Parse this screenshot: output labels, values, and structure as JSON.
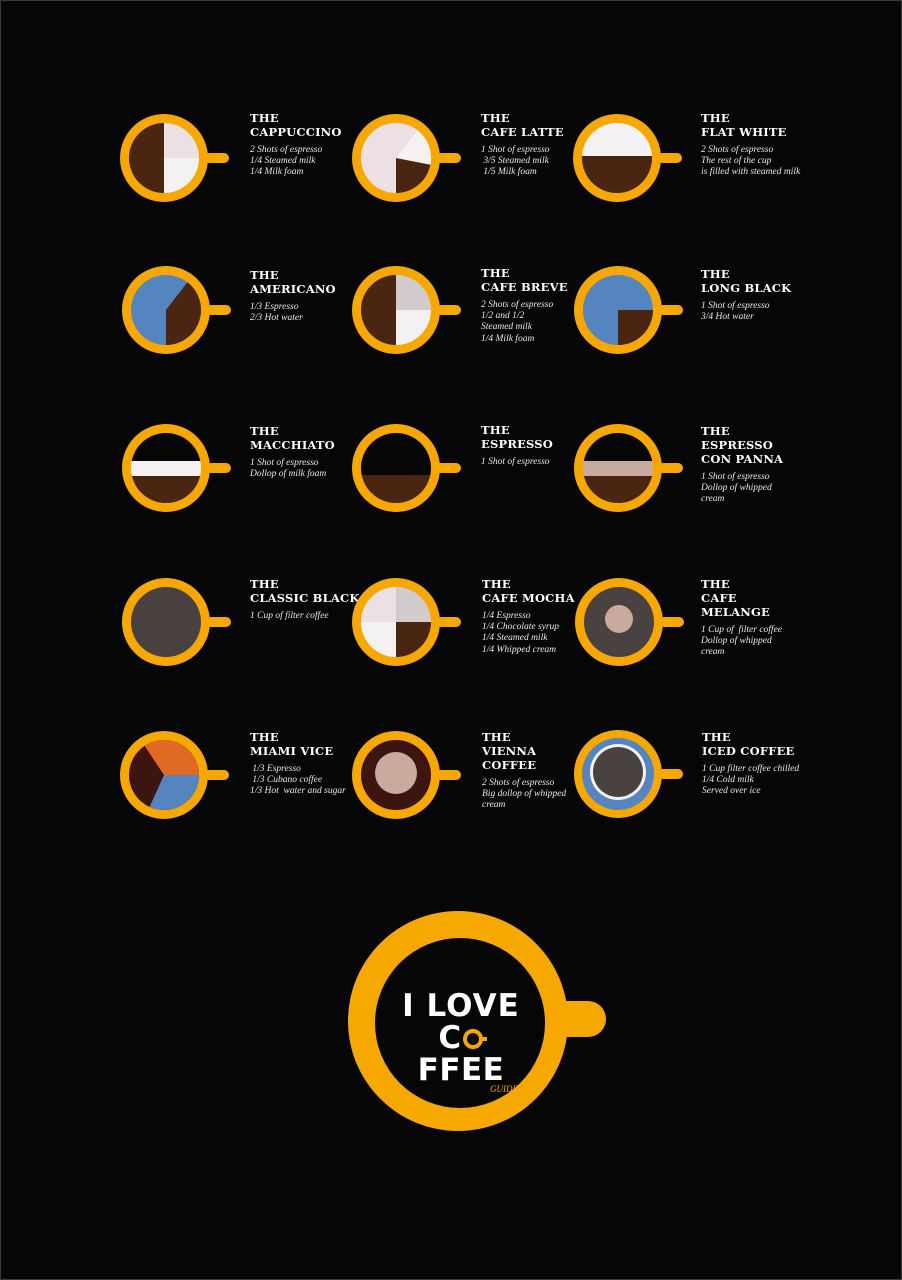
{
  "colors": {
    "cup": "#f7a800",
    "background": "#060606",
    "espresso": "#4a2512",
    "foam": "#f4f1f3",
    "milk": "#ece0e4",
    "grey_foam": "#d2cbcd",
    "water": "#5585bf",
    "cream": "#c8ab9e",
    "filter": "#4a4240",
    "orange": "#e06a23",
    "dark_red": "#3c1510"
  },
  "drinks": [
    {
      "title": "THE\nCAPPUCCINO",
      "lines": [
        "2 Shots of espresso",
        "1/4 Steamed milk",
        "1/4 Milk foam"
      ]
    },
    {
      "title": "THE\nCAFE LATTE",
      "lines": [
        "1 Shot of espresso",
        " 3/5 Steamed milk",
        " 1/5 Milk foam"
      ]
    },
    {
      "title": "THE\nFLAT WHITE",
      "lines": [
        "2 Shots of espresso",
        "The rest of the cup",
        "is filled with steamed milk"
      ]
    },
    {
      "title": "THE\nAMERICANO",
      "lines": [
        "1/3 Espresso",
        "2/3 Hot water"
      ]
    },
    {
      "title": "THE\nCAFE BREVE",
      "lines": [
        "2 Shots of espresso",
        "1/2 and 1/2",
        "Steamed milk",
        "1/4 Milk foam"
      ]
    },
    {
      "title": "THE\nLONG BLACK",
      "lines": [
        "1 Shot of espresso",
        "3/4 Hot water"
      ]
    },
    {
      "title": "THE\nMACCHIATO",
      "lines": [
        "1 Shot of espresso",
        "Dollop of milk foam"
      ]
    },
    {
      "title": "THE\nESPRESSO",
      "lines": [
        "1 Shot of espresso"
      ]
    },
    {
      "title": "THE\nESPRESSO\nCON PANNA",
      "lines": [
        "1 Shot of espresso",
        "Dollop of whipped",
        "cream"
      ]
    },
    {
      "title": "THE\nCLASSIC BLACK",
      "lines": [
        "1 Cup of filter coffee"
      ]
    },
    {
      "title": "THE\nCAFE MOCHA",
      "lines": [
        "1/4 Espresso",
        "1/4 Chocolate syrup",
        "1/4 Steamed milk",
        "1/4 Whipped cream"
      ]
    },
    {
      "title": "THE\nCAFE\nMELANGE",
      "lines": [
        "1 Cup of  filter coffee",
        "Dollop of whipped",
        "cream"
      ]
    },
    {
      "title": "THE\nMIAMI VICE",
      "lines": [
        " 1/3 Espresso",
        " 1/3 Cubano coffee",
        "1/3 Hot  water and sugar"
      ]
    },
    {
      "title": "THE\nVIENNA\nCOFFEE",
      "lines": [
        "2 Shots of espresso",
        "Big dollop of whipped",
        "cream"
      ]
    },
    {
      "title": "THE\nICED COFFEE",
      "lines": [
        "1 Cup filter coffee chilled",
        "1/4 Cold milk",
        "Served over ice"
      ]
    }
  ],
  "logo": {
    "line1": "I LOVE",
    "line2_pre": "C",
    "line2_post": "FFEE",
    "subtitle": "GUIDE"
  }
}
